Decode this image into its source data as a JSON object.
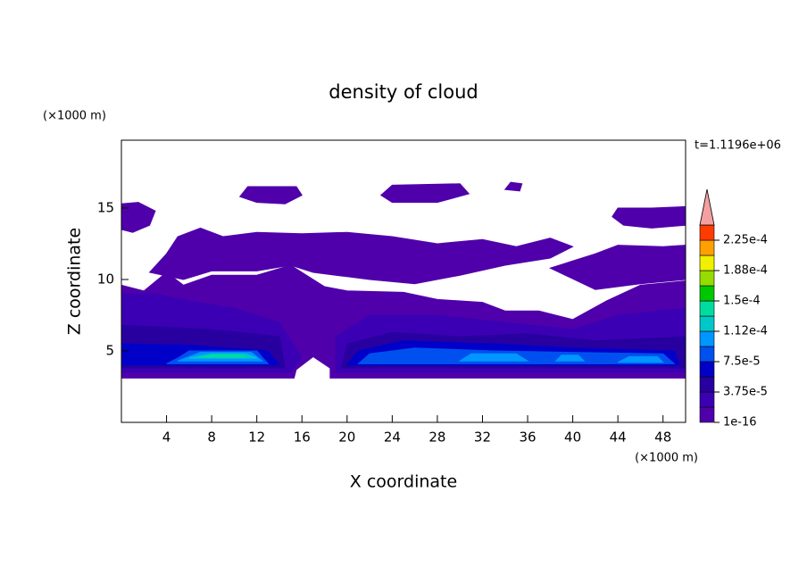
{
  "chart_data": {
    "type": "contour",
    "title": "density of cloud",
    "x_label": "X coordinate",
    "y_label": "Z coordinate",
    "x_unit": "(×1000 m)",
    "y_unit": "(×1000 m)",
    "annotation": "t=1.1196e+06",
    "xlim": [
      0,
      50
    ],
    "ylim": [
      0,
      19.75
    ],
    "xticks": [
      4,
      8,
      12,
      16,
      20,
      24,
      28,
      32,
      36,
      40,
      44,
      48
    ],
    "yticks": [
      5,
      10,
      15
    ],
    "levels": [
      1e-16,
      1.875e-05,
      3.75e-05,
      5.625e-05,
      7.5e-05,
      9.375e-05,
      0.0001125,
      0.00013125,
      0.00015,
      0.00016875,
      0.0001875,
      0.00020625,
      0.000225
    ],
    "colors": [
      "#5000aa",
      "#3c00b4",
      "#2800a0",
      "#0000c8",
      "#0050f0",
      "#0096ff",
      "#00c8c8",
      "#00dca0",
      "#00c800",
      "#96dc00",
      "#f0f000",
      "#ffa000",
      "#ff3c00"
    ],
    "extend_color": "#f5a0a0",
    "clim": [
      1e-16,
      0.00024375
    ],
    "colorbar_ticks": [
      {
        "value": 1e-16,
        "label": "1e-16"
      },
      {
        "value": 3.75e-05,
        "label": "3.75e-5"
      },
      {
        "value": 7.5e-05,
        "label": "7.5e-5"
      },
      {
        "value": 0.0001125,
        "label": "1.12e-4"
      },
      {
        "value": 0.00015,
        "label": "1.5e-4"
      },
      {
        "value": 0.0001875,
        "label": "1.88e-4"
      },
      {
        "value": 0.000225,
        "label": "2.25e-4"
      }
    ],
    "regions": [
      {
        "level": 1e-16,
        "x": [
          0,
          15.3,
          15.5,
          17,
          18.5,
          18.5,
          50,
          50,
          46,
          43,
          40,
          37,
          34,
          32,
          28,
          25,
          20,
          18,
          17,
          15,
          12,
          8,
          5.5,
          4,
          2,
          0
        ],
        "z": [
          3.1,
          3.1,
          3.7,
          4.6,
          3.8,
          3.1,
          3.1,
          9.9,
          9.6,
          8.5,
          7.2,
          7.8,
          7.8,
          8.4,
          8.6,
          9.1,
          9.2,
          9.5,
          10,
          11,
          10.3,
          10.3,
          9.6,
          10.5,
          9.2,
          9.6
        ]
      },
      {
        "level": 1e-16,
        "x": [
          2.5,
          4,
          5,
          7,
          9,
          12,
          16,
          20,
          24,
          28,
          32,
          35,
          38,
          40,
          38,
          34,
          30,
          26,
          22,
          20,
          17,
          15,
          12,
          8,
          5.5
        ],
        "z": [
          10.5,
          11.8,
          13,
          13.6,
          13,
          13.3,
          13.2,
          13.3,
          13,
          12.5,
          12.8,
          12.3,
          12.9,
          12.3,
          11.5,
          11,
          10.3,
          9.7,
          10,
          10.2,
          10.5,
          11,
          10.6,
          10.6,
          10
        ]
      },
      {
        "level": 1e-16,
        "x": [
          38,
          42,
          44,
          48,
          50,
          50,
          46,
          42
        ],
        "z": [
          10.8,
          11.8,
          12.4,
          12.3,
          12.4,
          10,
          9.7,
          9.3
        ]
      },
      {
        "level": 1e-16,
        "x": [
          0,
          0,
          1.5,
          3,
          2.5,
          1
        ],
        "z": [
          13.5,
          15.3,
          15.4,
          14.8,
          13.8,
          13.3
        ]
      },
      {
        "level": 1e-16,
        "x": [
          10.5,
          11.2,
          15.5,
          16,
          14.5,
          12
        ],
        "z": [
          15.8,
          16.5,
          16.5,
          15.9,
          15.3,
          15.4
        ]
      },
      {
        "level": 1e-16,
        "x": [
          23,
          24,
          30,
          30.8,
          28,
          24
        ],
        "z": [
          15.9,
          16.6,
          16.7,
          16,
          15.4,
          15.4
        ]
      },
      {
        "level": 1e-16,
        "x": [
          34,
          34.5,
          35.5,
          35.3
        ],
        "z": [
          16.3,
          16.8,
          16.7,
          16.2
        ]
      },
      {
        "level": 1e-16,
        "x": [
          43.5,
          44,
          47,
          50,
          50,
          47,
          44.5
        ],
        "z": [
          14.4,
          15,
          15,
          15.1,
          13.8,
          13.6,
          13.8
        ]
      },
      {
        "level": 1.875e-05,
        "x": [
          0,
          15,
          16,
          14,
          10,
          6,
          3,
          0
        ],
        "z": [
          3.5,
          3.5,
          4.5,
          7,
          8,
          8.5,
          9,
          9
        ]
      },
      {
        "level": 1.875e-05,
        "x": [
          19,
          50,
          50,
          44,
          40,
          34,
          28,
          22,
          19
        ],
        "z": [
          3.5,
          3.5,
          8,
          7.5,
          6.5,
          7,
          7.5,
          7.5,
          6
        ]
      },
      {
        "level": 3.75e-05,
        "x": [
          0,
          14.5,
          14,
          8,
          0
        ],
        "z": [
          3.8,
          3.8,
          6,
          6.5,
          6.8
        ]
      },
      {
        "level": 3.75e-05,
        "x": [
          19.5,
          50,
          50,
          42,
          36,
          30,
          24,
          20
        ],
        "z": [
          3.8,
          3.8,
          6,
          5.7,
          6.2,
          6,
          6.3,
          5.5
        ]
      },
      {
        "level": 5.625e-05,
        "x": [
          0,
          14,
          13,
          6,
          0
        ],
        "z": [
          4,
          4,
          5,
          5.4,
          5.5
        ]
      },
      {
        "level": 5.625e-05,
        "x": [
          20,
          49.5,
          49,
          40,
          33,
          25,
          21
        ],
        "z": [
          4,
          4,
          5,
          5.2,
          5.5,
          5.7,
          5
        ]
      },
      {
        "level": 7.5e-05,
        "x": [
          4,
          13,
          12,
          6,
          5
        ],
        "z": [
          4.1,
          4.1,
          5,
          5,
          4.5
        ]
      },
      {
        "level": 7.5e-05,
        "x": [
          21,
          49,
          48,
          40,
          33,
          26,
          22
        ],
        "z": [
          4.1,
          4.1,
          4.8,
          4.9,
          5,
          5.2,
          4.8
        ]
      },
      {
        "level": 9.375e-05,
        "x": [
          5,
          12.5,
          11.5,
          7
        ],
        "z": [
          4.3,
          4.3,
          4.9,
          4.9
        ]
      },
      {
        "level": 9.375e-05,
        "x": [
          30,
          36,
          35,
          31
        ],
        "z": [
          4.3,
          4.3,
          4.8,
          4.8
        ]
      },
      {
        "level": 9.375e-05,
        "x": [
          38.5,
          41,
          40.5,
          39
        ],
        "z": [
          4.3,
          4.3,
          4.7,
          4.7
        ]
      },
      {
        "level": 9.375e-05,
        "x": [
          44,
          48,
          47.5,
          45
        ],
        "z": [
          4.2,
          4.2,
          4.6,
          4.6
        ]
      },
      {
        "level": 0.0001125,
        "x": [
          6,
          12,
          11,
          8
        ],
        "z": [
          4.5,
          4.5,
          4.8,
          4.8
        ]
      },
      {
        "level": 0.00013125,
        "x": [
          7,
          11,
          10.5,
          8
        ],
        "z": [
          4.55,
          4.55,
          4.7,
          4.7
        ]
      }
    ]
  }
}
